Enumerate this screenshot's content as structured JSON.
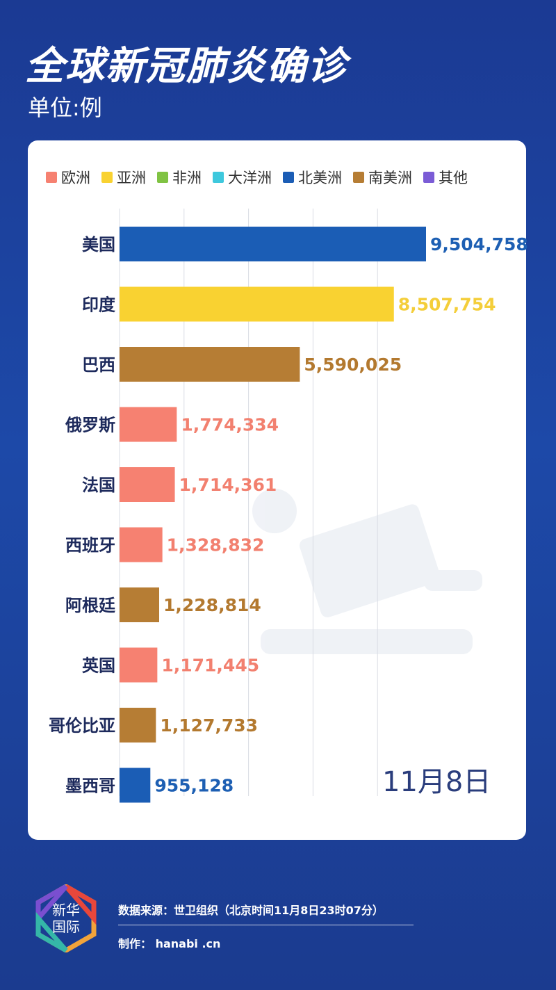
{
  "header": {
    "title": "全球新冠肺炎确诊",
    "unit": "单位:例"
  },
  "legend": [
    {
      "label": "欧洲",
      "color": "#f68171"
    },
    {
      "label": "亚洲",
      "color": "#f9d231"
    },
    {
      "label": "非洲",
      "color": "#80c343"
    },
    {
      "label": "大洋洲",
      "color": "#3ec8dd"
    },
    {
      "label": "北美洲",
      "color": "#1b5db5"
    },
    {
      "label": "南美洲",
      "color": "#b67d34"
    },
    {
      "label": "其他",
      "color": "#7b5cd6"
    }
  ],
  "chart_data": {
    "type": "bar",
    "orientation": "horizontal",
    "categories": [
      "美国",
      "印度",
      "巴西",
      "俄罗斯",
      "法国",
      "西班牙",
      "阿根廷",
      "英国",
      "哥伦比亚",
      "墨西哥"
    ],
    "values": [
      9504758,
      8507754,
      5590025,
      1774334,
      1714361,
      1328832,
      1228814,
      1171445,
      1127733,
      955128
    ],
    "value_labels": [
      "9,504,758",
      "8,507,754",
      "5,590,025",
      "1,774,334",
      "1,714,361",
      "1,328,832",
      "1,228,814",
      "1,171,445",
      "1,127,733",
      "955,128"
    ],
    "region": [
      "北美洲",
      "亚洲",
      "南美洲",
      "欧洲",
      "欧洲",
      "欧洲",
      "南美洲",
      "欧洲",
      "南美洲",
      "北美洲"
    ],
    "region_colors": {
      "欧洲": "#f68171",
      "亚洲": "#f9d231",
      "南美洲": "#b67d34",
      "北美洲": "#1b5db5"
    },
    "label_colors": {
      "欧洲": "#f2806f",
      "亚洲": "#f4ce3a",
      "南美洲": "#b3792f",
      "北美洲": "#1d5fb3"
    },
    "xlim": [
      0,
      10000000
    ],
    "grid": true,
    "legend_position": "top"
  },
  "date_label": "11月8日",
  "logo": {
    "text": "新华国际"
  },
  "footer": {
    "source": "数据来源：世卫组织（北京时间11月8日23时07分）",
    "credit": "制作： hanabi .cn"
  }
}
